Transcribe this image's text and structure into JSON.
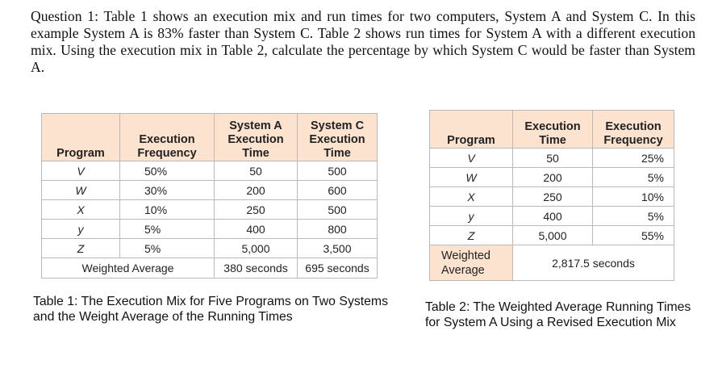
{
  "question": "Question 1: Table 1 shows an execution mix and run times for two computers, System A and System C. In this example System A is 83% faster than System C.  Table 2 shows run times for System A with a different execution mix. Using the execution mix in Table 2, calculate the percentage by which System C would be faster than System A.",
  "table1": {
    "headers": {
      "program": "Program",
      "freq_line1": "Execution",
      "freq_line2": "Frequency",
      "sysA_line1": "System A",
      "sysA_line2": "Execution",
      "sysA_line3": "Time",
      "sysC_line1": "System C",
      "sysC_line2": "Execution",
      "sysC_line3": "Time"
    },
    "rows": [
      {
        "program": "V",
        "frequency": "50%",
        "system_a": "50",
        "system_c": "500"
      },
      {
        "program": "W",
        "frequency": "30%",
        "system_a": "200",
        "system_c": "600"
      },
      {
        "program": "X",
        "frequency": "10%",
        "system_a": "250",
        "system_c": "500"
      },
      {
        "program": "y",
        "frequency": "5%",
        "system_a": "400",
        "system_c": "800"
      },
      {
        "program": "Z",
        "frequency": "5%",
        "system_a": "5,000",
        "system_c": "3,500"
      }
    ],
    "weighted_label": "Weighted Average",
    "weighted_a": "380 seconds",
    "weighted_c": "695 seconds"
  },
  "table2": {
    "headers": {
      "program": "Program",
      "time_line1": "Execution",
      "time_line2": "Time",
      "freq_line1": "Execution",
      "freq_line2": "Frequency"
    },
    "rows": [
      {
        "program": "V",
        "time": "50",
        "frequency": "25%"
      },
      {
        "program": "W",
        "time": "200",
        "frequency": "5%"
      },
      {
        "program": "X",
        "time": "250",
        "frequency": "10%"
      },
      {
        "program": "y",
        "time": "400",
        "frequency": "5%"
      },
      {
        "program": "Z",
        "time": "5,000",
        "frequency": "55%"
      }
    ],
    "weighted_label_line1": "Weighted",
    "weighted_label_line2": "Average",
    "weighted_value": "2,817.5 seconds"
  },
  "caption1": "Table 1: The Execution Mix for Five Programs on Two Systems and the Weight Average of the Running Times",
  "caption2": "Table 2: The Weighted Average Running Times for System A Using a Revised Execution Mix",
  "colors": {
    "header_bg": "#fbe3cf",
    "border": "#b9b9b9"
  }
}
